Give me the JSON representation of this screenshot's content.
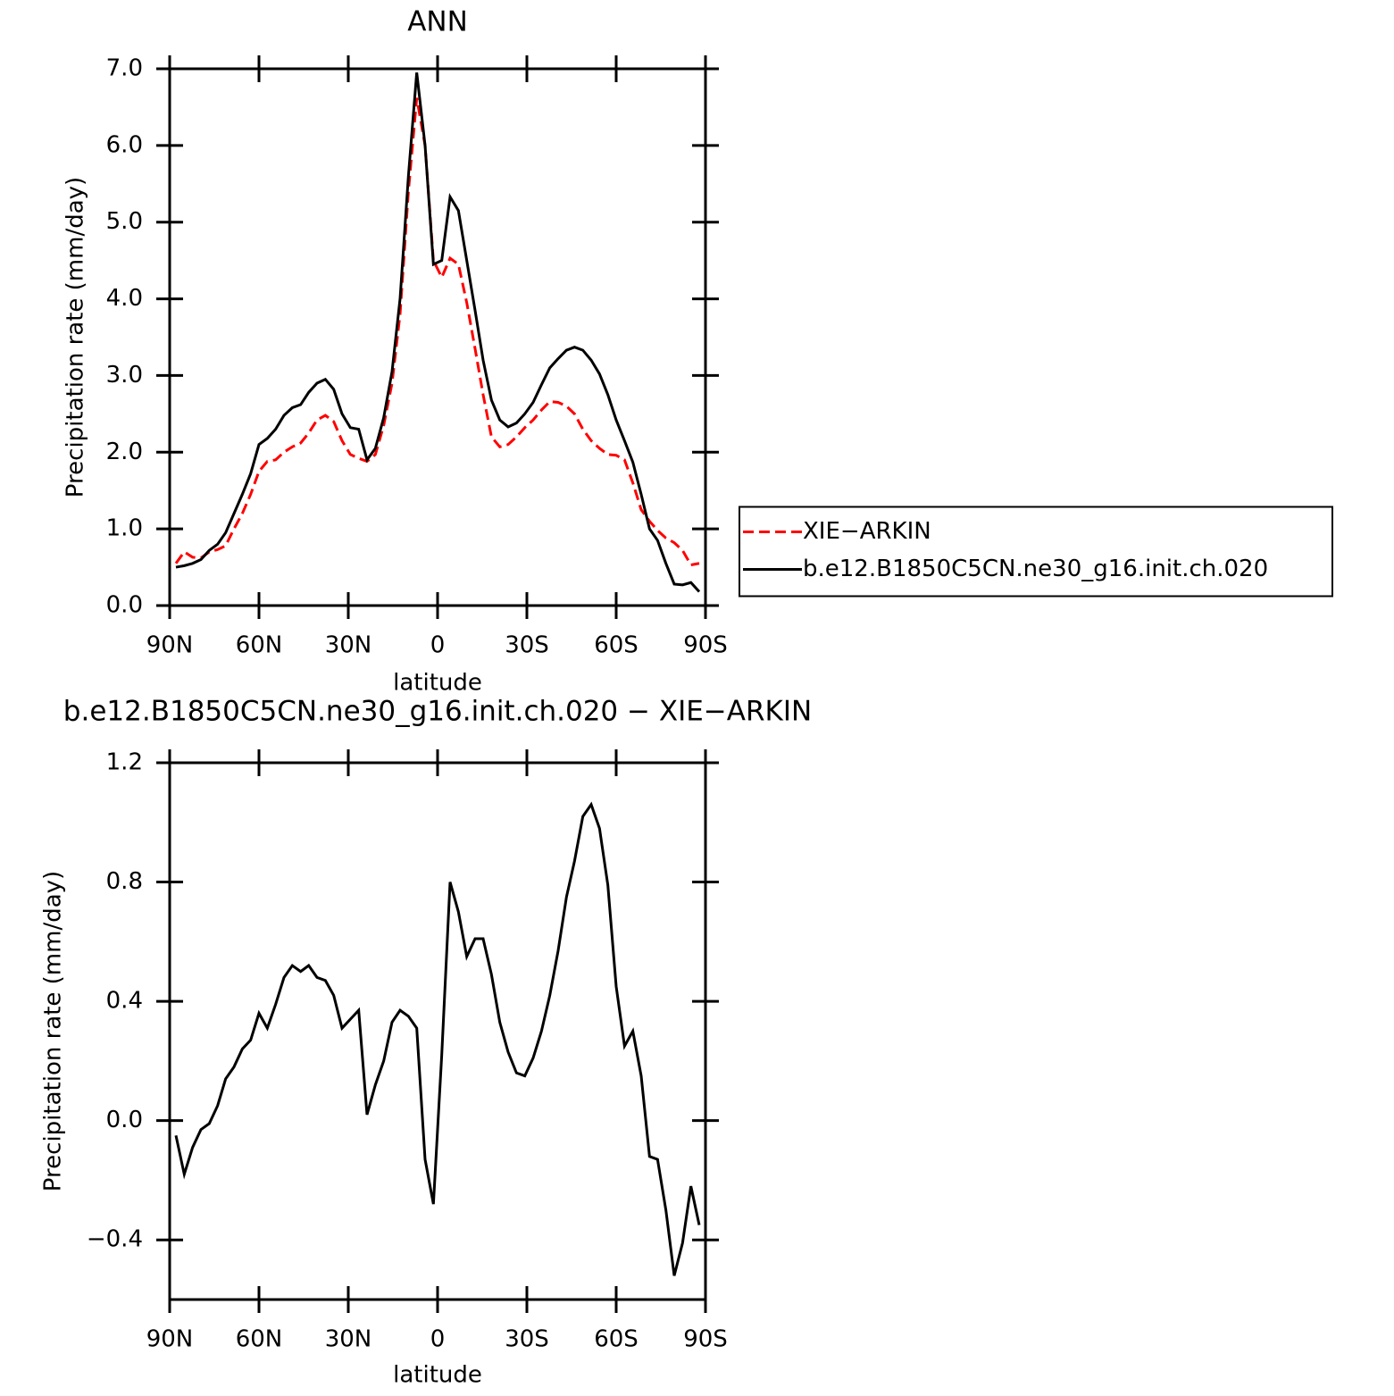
{
  "chart_data": [
    {
      "type": "line",
      "title": "ANN",
      "x_label": "latitude",
      "y_label": "Precipitation rate (mm/day)",
      "x": [
        87.9,
        85.1,
        82.3,
        79.5,
        76.7,
        73.9,
        71.2,
        68.4,
        65.6,
        62.8,
        60.0,
        57.2,
        54.4,
        51.6,
        48.8,
        46.0,
        43.3,
        40.5,
        37.7,
        34.9,
        32.1,
        29.3,
        26.5,
        23.7,
        20.9,
        18.1,
        15.3,
        12.6,
        9.8,
        7.0,
        4.2,
        1.4,
        -1.4,
        -4.2,
        -7.0,
        -9.8,
        -12.6,
        -15.3,
        -18.1,
        -20.9,
        -23.7,
        -26.5,
        -29.3,
        -32.1,
        -34.9,
        -37.7,
        -40.5,
        -43.3,
        -46.0,
        -48.8,
        -51.6,
        -54.4,
        -57.2,
        -60.0,
        -62.8,
        -65.6,
        -68.4,
        -71.2,
        -73.9,
        -76.7,
        -79.5,
        -82.3,
        -85.1,
        -87.9
      ],
      "series": [
        {
          "name": "XIE−ARKIN",
          "color": "#ff0000",
          "line_style": "dashed",
          "values": [
            0.55,
            0.7,
            0.63,
            0.62,
            0.7,
            0.73,
            0.78,
            1.0,
            1.2,
            1.45,
            1.75,
            1.88,
            1.9,
            2.0,
            2.07,
            2.12,
            2.25,
            2.42,
            2.48,
            2.4,
            2.15,
            1.97,
            1.92,
            1.88,
            1.97,
            2.35,
            2.9,
            3.8,
            5.4,
            6.62,
            6.0,
            4.5,
            4.28,
            4.53,
            4.45,
            3.95,
            3.35,
            2.75,
            2.2,
            2.07,
            2.1,
            2.2,
            2.32,
            2.42,
            2.55,
            2.66,
            2.65,
            2.6,
            2.5,
            2.3,
            2.15,
            2.05,
            1.97,
            1.96,
            1.9,
            1.6,
            1.25,
            1.1,
            0.98,
            0.88,
            0.82,
            0.72,
            0.53,
            0.55
          ]
        },
        {
          "name": "b.e12.B1850C5CN.ne30_g16.init.ch.020",
          "color": "#000000",
          "line_style": "solid",
          "values": [
            0.5,
            0.52,
            0.55,
            0.6,
            0.72,
            0.8,
            0.95,
            1.2,
            1.45,
            1.72,
            2.1,
            2.18,
            2.3,
            2.48,
            2.58,
            2.62,
            2.78,
            2.9,
            2.95,
            2.82,
            2.5,
            2.32,
            2.3,
            1.9,
            2.05,
            2.45,
            3.05,
            4.0,
            5.6,
            6.95,
            6.0,
            4.45,
            4.5,
            5.33,
            5.15,
            4.5,
            3.85,
            3.2,
            2.68,
            2.42,
            2.33,
            2.38,
            2.5,
            2.65,
            2.88,
            3.1,
            3.22,
            3.33,
            3.37,
            3.33,
            3.2,
            3.02,
            2.75,
            2.42,
            2.15,
            1.87,
            1.45,
            1.0,
            0.85,
            0.55,
            0.28,
            0.27,
            0.3,
            0.18
          ]
        }
      ],
      "xlim": [
        90,
        -90
      ],
      "xticks": [
        {
          "value": 90,
          "label": "90N"
        },
        {
          "value": 60,
          "label": "60N"
        },
        {
          "value": 30,
          "label": "30N"
        },
        0,
        {
          "value": -30,
          "label": "30S"
        },
        {
          "value": -60,
          "label": "60S"
        },
        {
          "value": -90,
          "label": "90S"
        }
      ],
      "ylim": [
        0,
        7
      ],
      "yticks": [
        {
          "value": 0,
          "label": "0.0"
        },
        {
          "value": 1,
          "label": "1.0"
        },
        {
          "value": 2,
          "label": "2.0"
        },
        {
          "value": 3,
          "label": "3.0"
        },
        {
          "value": 4,
          "label": "4.0"
        },
        {
          "value": 5,
          "label": "5.0"
        },
        {
          "value": 6,
          "label": "6.0"
        },
        {
          "value": 7,
          "label": "7.0"
        }
      ],
      "legend": "right"
    },
    {
      "type": "line",
      "title": "b.e12.B1850C5CN.ne30_g16.init.ch.020 − XIE−ARKIN",
      "x_label": "latitude",
      "y_label": "Precipitation rate (mm/day)",
      "x": [
        87.9,
        85.1,
        82.3,
        79.5,
        76.7,
        73.9,
        71.2,
        68.4,
        65.6,
        62.8,
        60.0,
        57.2,
        54.4,
        51.6,
        48.8,
        46.0,
        43.3,
        40.5,
        37.7,
        34.9,
        32.1,
        29.3,
        26.5,
        23.7,
        20.9,
        18.1,
        15.3,
        12.6,
        9.8,
        7.0,
        4.2,
        1.4,
        -1.4,
        -4.2,
        -7.0,
        -9.8,
        -12.6,
        -15.3,
        -18.1,
        -20.9,
        -23.7,
        -26.5,
        -29.3,
        -32.1,
        -34.9,
        -37.7,
        -40.5,
        -43.3,
        -46.0,
        -48.8,
        -51.6,
        -54.4,
        -57.2,
        -60.0,
        -62.8,
        -65.6,
        -68.4,
        -71.2,
        -73.9,
        -76.7,
        -79.5,
        -82.3,
        -85.1,
        -87.9
      ],
      "series": [
        {
          "color": "#000000",
          "line_style": "solid",
          "values": [
            -0.05,
            -0.18,
            -0.09,
            -0.03,
            -0.01,
            0.05,
            0.14,
            0.18,
            0.24,
            0.27,
            0.36,
            0.31,
            0.39,
            0.48,
            0.52,
            0.5,
            0.52,
            0.48,
            0.47,
            0.42,
            0.31,
            0.34,
            0.37,
            0.02,
            0.12,
            0.2,
            0.33,
            0.37,
            0.35,
            0.31,
            -0.13,
            -0.28,
            0.22,
            0.8,
            0.7,
            0.55,
            0.61,
            0.61,
            0.49,
            0.33,
            0.23,
            0.16,
            0.15,
            0.21,
            0.3,
            0.42,
            0.57,
            0.75,
            0.87,
            1.02,
            1.06,
            0.98,
            0.79,
            0.45,
            0.25,
            0.3,
            0.15,
            -0.12,
            -0.13,
            -0.3,
            -0.52,
            -0.41,
            -0.22,
            -0.35
          ]
        }
      ],
      "xlim": [
        90,
        -90
      ],
      "xticks": [
        {
          "value": 90,
          "label": "90N"
        },
        {
          "value": 60,
          "label": "60N"
        },
        {
          "value": 30,
          "label": "30N"
        },
        0,
        {
          "value": -30,
          "label": "30S"
        },
        {
          "value": -60,
          "label": "60S"
        },
        {
          "value": -90,
          "label": "90S"
        }
      ],
      "ylim": [
        -0.6,
        1.2
      ],
      "yticks": [
        {
          "value": -0.4,
          "label": "−0.4"
        },
        {
          "value": 0,
          "label": "0.0"
        },
        0.4,
        0.8,
        1.2
      ]
    }
  ]
}
